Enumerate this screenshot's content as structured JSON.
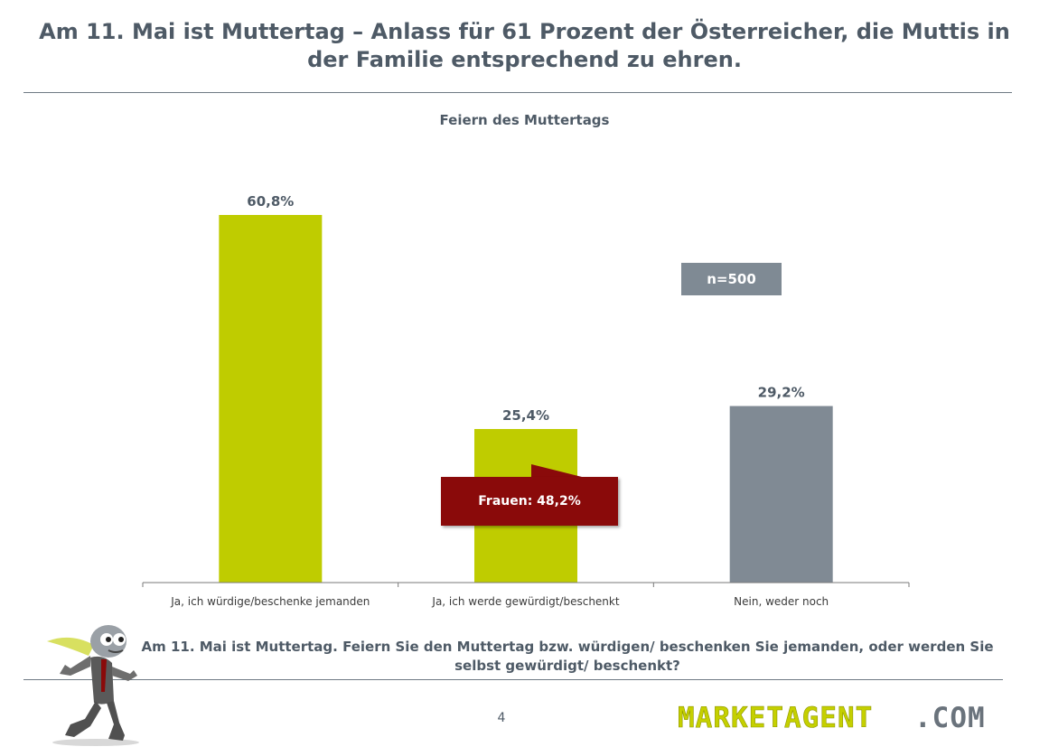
{
  "header": {
    "title": "Am 11. Mai ist Muttertag – Anlass für 61 Prozent der Österreicher, die Muttis in der Familie entsprechend zu ehren."
  },
  "chart_data": {
    "type": "bar",
    "title": "Feiern des Muttertags",
    "categories": [
      "Ja, ich würdige/beschenke jemanden",
      "Ja, ich werde gewürdigt/beschenkt",
      "Nein, weder noch"
    ],
    "values": [
      60.8,
      25.4,
      29.2
    ],
    "value_labels": [
      "60,8%",
      "25,4%",
      "29,2%"
    ],
    "bar_colors": [
      "#bfcc00",
      "#bfcc00",
      "#808a94"
    ],
    "ylim": [
      0,
      70
    ],
    "grid": false,
    "legend": "none",
    "annotations": {
      "sample_size": "n=500",
      "callout": "Frauen: 48,2%"
    }
  },
  "footer": {
    "question": "Am 11. Mai ist Muttertag. Feiern Sie den Muttertag bzw. würdigen/ beschenken Sie jemanden, oder werden Sie selbst gewürdigt/ beschenkt?",
    "page_number": "4",
    "logo_main": "MARKETAGENT",
    "logo_suffix": ".COM"
  },
  "colors": {
    "accent": "#bfcc00",
    "grey": "#808a94",
    "callout": "#8a0a0a",
    "text": "#4e5a66"
  },
  "icons": {
    "mascot": "running-cartoon-man-icon"
  }
}
